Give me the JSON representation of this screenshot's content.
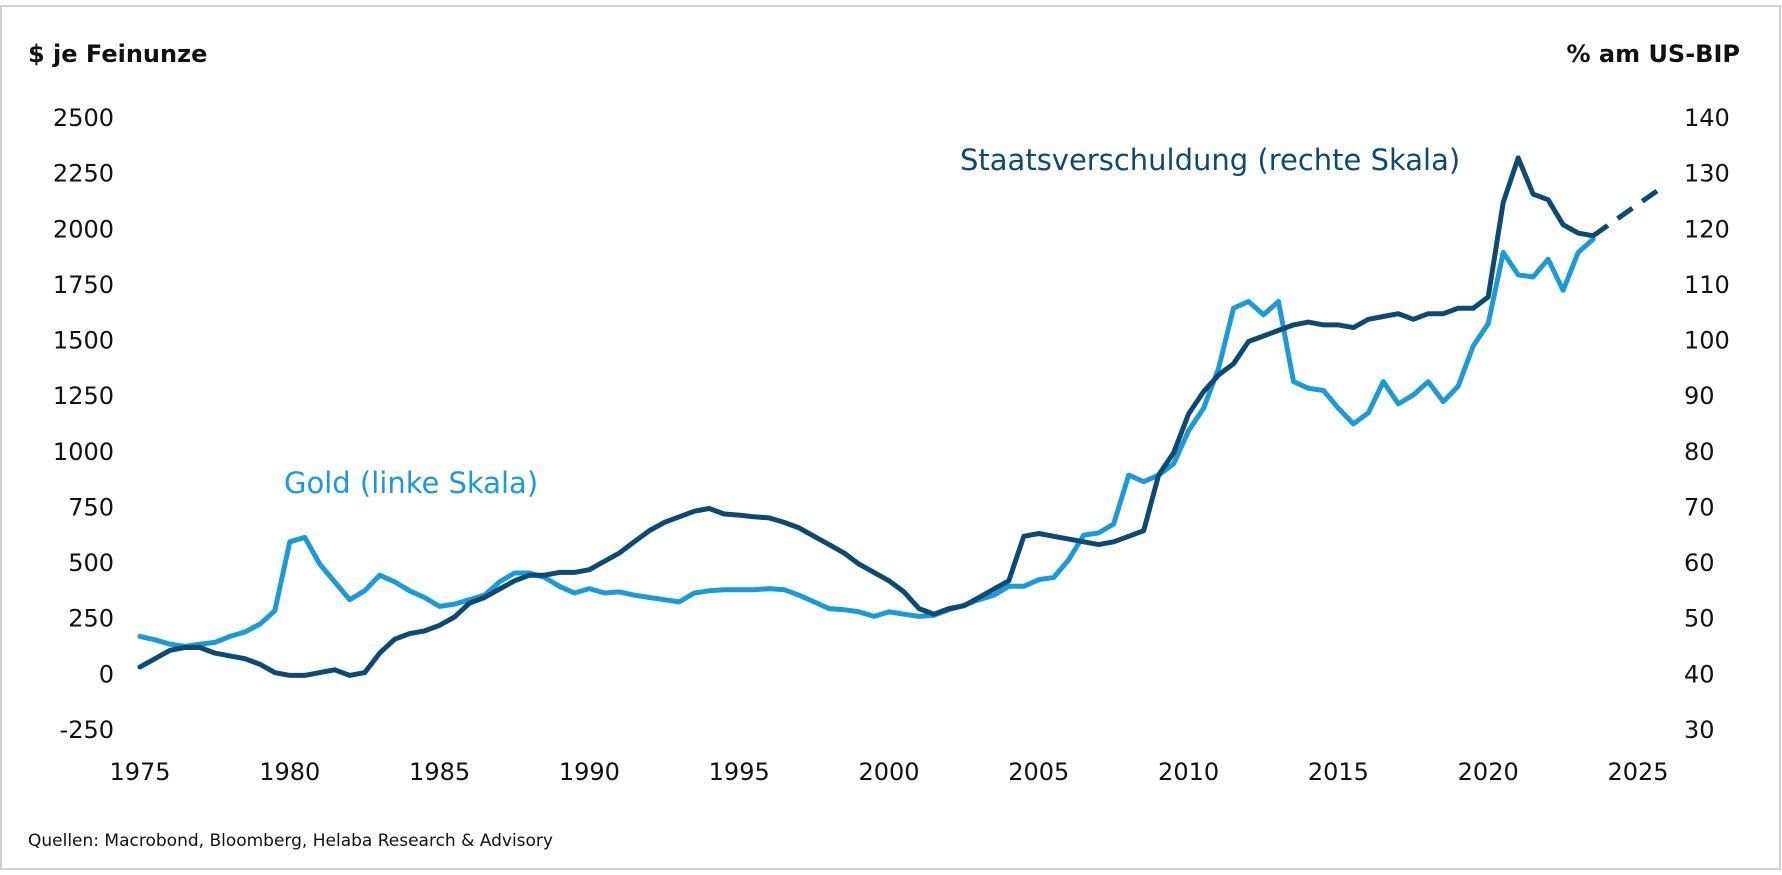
{
  "chart_data": {
    "type": "line",
    "y_label": "$ je Feinunze",
    "y2_label": "% am US-BIP",
    "source": "Quellen: Macrobond, Bloomberg, Helaba Research & Advisory",
    "xlim": [
      1975,
      2026
    ],
    "xticks": [
      1975,
      1980,
      1985,
      1990,
      1995,
      2000,
      2005,
      2010,
      2015,
      2020,
      2025
    ],
    "ylim": [
      -250,
      2500
    ],
    "yticks": [
      -250,
      0,
      250,
      500,
      750,
      1000,
      1250,
      1500,
      1750,
      2000,
      2250,
      2500
    ],
    "y2lim": [
      30,
      140
    ],
    "y2ticks": [
      30,
      40,
      50,
      60,
      70,
      80,
      90,
      100,
      110,
      120,
      130,
      140
    ],
    "grid": false,
    "x": [
      1975,
      1975.5,
      1976,
      1976.5,
      1977,
      1977.5,
      1978,
      1978.5,
      1979,
      1979.5,
      1980,
      1980.5,
      1981,
      1981.5,
      1982,
      1982.5,
      1983,
      1983.5,
      1984,
      1984.5,
      1985,
      1985.5,
      1986,
      1986.5,
      1987,
      1987.5,
      1988,
      1988.5,
      1989,
      1989.5,
      1990,
      1990.5,
      1991,
      1991.5,
      1992,
      1992.5,
      1993,
      1993.5,
      1994,
      1994.5,
      1995,
      1995.5,
      1996,
      1996.5,
      1997,
      1997.5,
      1998,
      1998.5,
      1999,
      1999.5,
      2000,
      2000.5,
      2001,
      2001.5,
      2002,
      2002.5,
      2003,
      2003.5,
      2004,
      2004.5,
      2005,
      2005.5,
      2006,
      2006.5,
      2007,
      2007.5,
      2008,
      2008.5,
      2009,
      2009.5,
      2010,
      2010.5,
      2011,
      2011.5,
      2012,
      2012.5,
      2013,
      2013.5,
      2014,
      2014.5,
      2015,
      2015.5,
      2016,
      2016.5,
      2017,
      2017.5,
      2018,
      2018.5,
      2019,
      2019.5,
      2020,
      2020.5,
      2021,
      2021.5,
      2022,
      2022.5,
      2023,
      2023.5
    ],
    "series": [
      {
        "name": "Gold (linke Skala)",
        "color": "#1a9ad6",
        "axis": "y",
        "values": [
          175,
          160,
          140,
          130,
          140,
          148,
          175,
          195,
          230,
          290,
          600,
          620,
          500,
          420,
          340,
          380,
          450,
          420,
          380,
          350,
          310,
          320,
          340,
          360,
          420,
          460,
          460,
          440,
          400,
          370,
          390,
          370,
          375,
          360,
          350,
          340,
          330,
          370,
          380,
          385,
          385,
          385,
          390,
          385,
          360,
          330,
          300,
          295,
          285,
          265,
          285,
          275,
          265,
          270,
          295,
          315,
          340,
          360,
          400,
          400,
          430,
          440,
          520,
          630,
          640,
          680,
          900,
          870,
          900,
          950,
          1100,
          1200,
          1380,
          1650,
          1680,
          1620,
          1680,
          1320,
          1290,
          1280,
          1200,
          1130,
          1180,
          1320,
          1220,
          1260,
          1320,
          1230,
          1300,
          1480,
          1580,
          1900,
          1800,
          1790,
          1870,
          1730,
          1900,
          1960
        ]
      },
      {
        "name": "Staatsverschuldung (rechte Skala)",
        "color": "#0d4a73",
        "axis": "y2",
        "values": [
          41.5,
          43,
          44.5,
          45,
          45,
          44,
          43.5,
          43,
          42,
          40.5,
          40,
          40,
          40.5,
          41,
          40,
          40.5,
          44,
          46.5,
          47.5,
          48,
          49,
          50.5,
          53,
          54,
          55.5,
          57,
          58,
          58,
          58.5,
          58.5,
          59,
          60.5,
          62,
          64,
          66,
          67.5,
          68.5,
          69.5,
          70,
          69,
          68.8,
          68.5,
          68.3,
          67.5,
          66.5,
          65,
          63.5,
          62,
          60,
          58.5,
          57,
          55,
          52,
          51,
          52,
          52.5,
          54,
          55.5,
          57,
          65,
          65.5,
          65,
          64.5,
          64,
          63.5,
          64,
          65,
          66,
          76,
          80,
          87,
          91,
          94,
          96,
          100,
          101,
          102,
          103,
          103.5,
          103,
          103,
          102.5,
          104,
          104.5,
          105,
          104,
          105,
          105,
          106,
          106,
          108,
          125,
          133,
          126.5,
          125.5,
          121,
          119.5,
          119
        ]
      },
      {
        "color": "#0d4a73",
        "axis": "y2",
        "dashed": true,
        "x": [
          2023.5,
          2025.75
        ],
        "values": [
          119,
          127.5
        ]
      }
    ]
  }
}
